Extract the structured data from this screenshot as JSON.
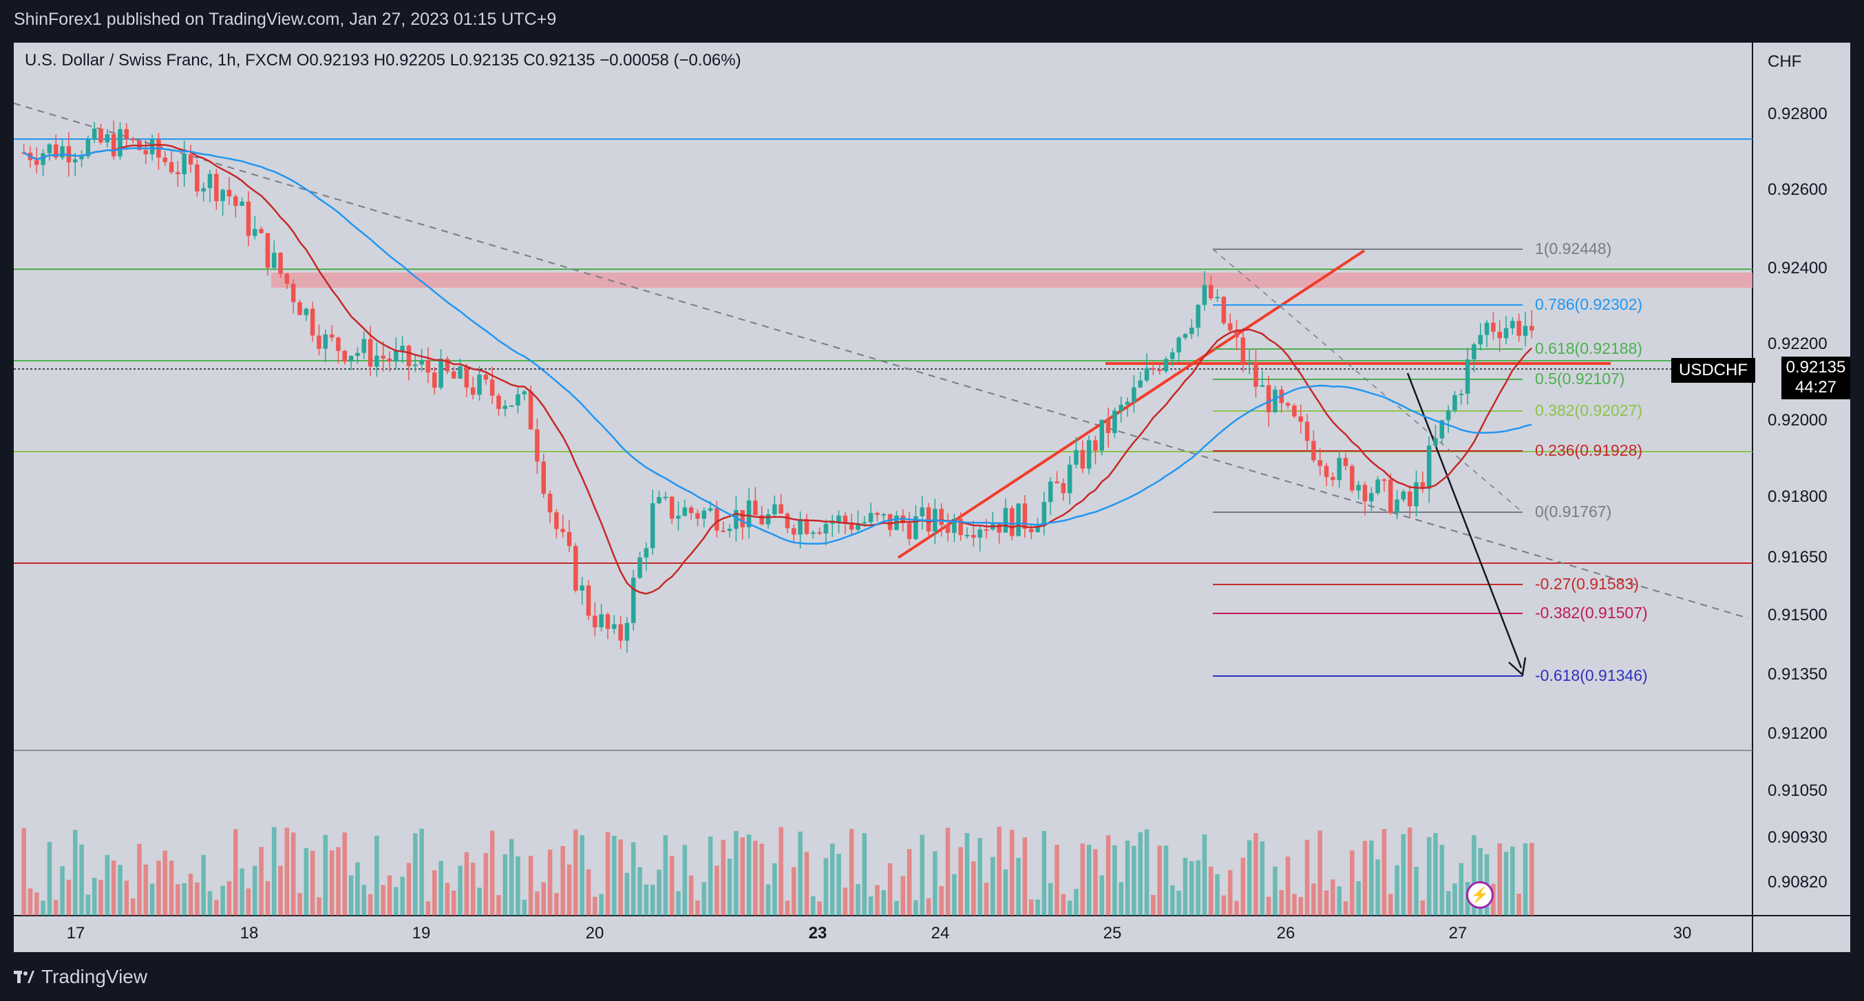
{
  "header": {
    "publisher_text": "ShinForex1 published on TradingView.com, Jan 27, 2023 01:15 UTC+9"
  },
  "legend": {
    "ohlc_text": "U.S. Dollar / Swiss Franc, 1h, FXCM  O0.92193  H0.92205  L0.92135  C0.92135  −0.00058 (−0.06%)"
  },
  "price_axis": {
    "currency": "CHF",
    "symbol": "USDCHF",
    "current_price": "0.92135",
    "countdown": "44:27"
  },
  "footer": {
    "brand": "TradingView"
  },
  "colors": {
    "background": "#d1d4dc",
    "up": "#26a69a",
    "down": "#ef5350",
    "ma_red": "#c62828",
    "ma_blue": "#2196f3",
    "resistance_zone": "#e8a0a8",
    "trendline": "#f23c2a"
  },
  "icons": {
    "logo": "tradingview-logo-icon",
    "bolt": "lightning-bolt-icon"
  },
  "chart_data": {
    "type": "candlestick",
    "symbol": "U.S. Dollar / Swiss Franc",
    "timeframe": "1h",
    "broker": "FXCM",
    "x_ticks": [
      "17",
      "18",
      "19",
      "20",
      "23",
      "24",
      "25",
      "26",
      "27",
      "30"
    ],
    "y_ticks": [
      "0.92800",
      "0.92600",
      "0.92400",
      "0.92200",
      "0.92000",
      "0.91800",
      "0.91650",
      "0.91500",
      "0.91350",
      "0.91200",
      "0.91050",
      "0.90930",
      "0.90820"
    ],
    "fib_levels": [
      {
        "label": "1(0.92448)",
        "color": "#787b86"
      },
      {
        "label": "0.786(0.92302)",
        "color": "#2196f3"
      },
      {
        "label": "0.618(0.92188)",
        "color": "#4caf50"
      },
      {
        "label": "0.5(0.92107)",
        "color": "#4caf50"
      },
      {
        "label": "0.382(0.92027)",
        "color": "#8bc34a"
      },
      {
        "label": "0.236(0.91928)",
        "color": "#c62828"
      },
      {
        "label": "0(0.91767)",
        "color": "#787b86"
      },
      {
        "label": "-0.27(0.91583)",
        "color": "#c62828"
      },
      {
        "label": "-0.382(0.91507)",
        "color": "#c2185b"
      },
      {
        "label": "-0.618(0.91346)",
        "color": "#3030c0"
      }
    ],
    "last_close": 0.92135
  }
}
